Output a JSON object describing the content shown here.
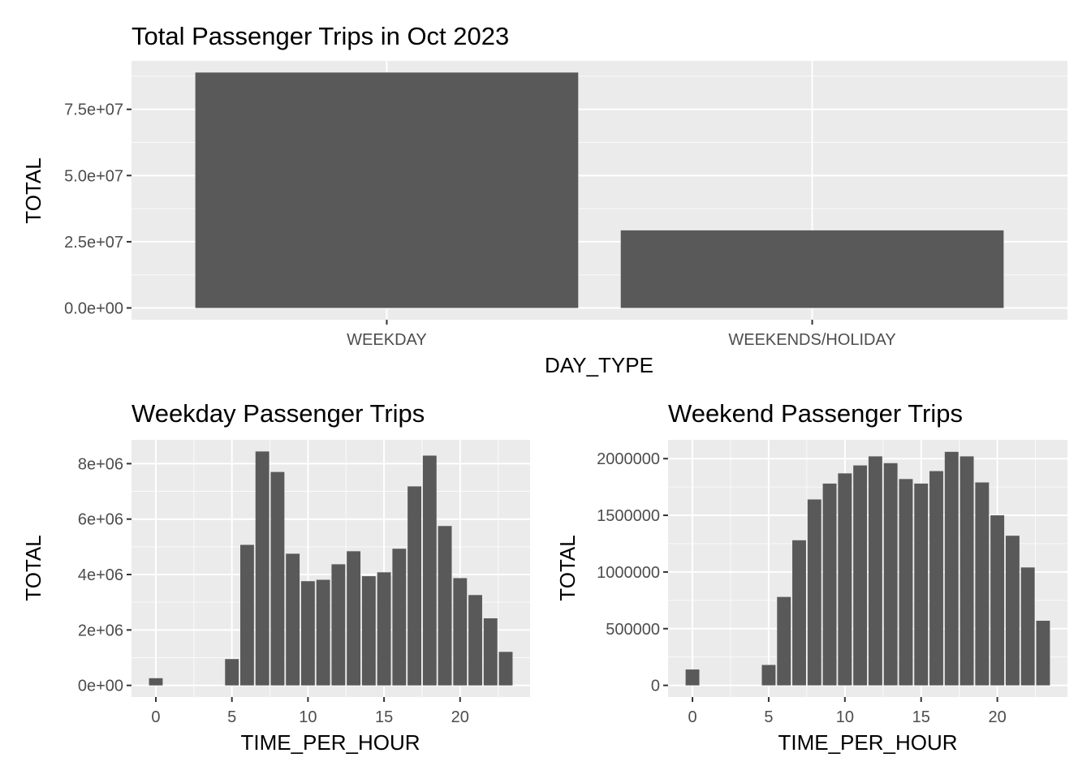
{
  "colors": {
    "panel_background": "#ebebeb",
    "grid": "#ffffff",
    "bar_fill": "#595959",
    "tick_text": "#4d4d4d"
  },
  "chart_data": [
    {
      "id": "total",
      "type": "bar",
      "title": "Total Passenger Trips in Oct 2023",
      "xlabel": "DAY_TYPE",
      "ylabel": "TOTAL",
      "categories": [
        "WEEKDAY",
        "WEEKENDS/HOLIDAY"
      ],
      "values": [
        88900000,
        29300000
      ],
      "ylim": [
        -4440000,
        93300000
      ],
      "yticks": [
        0,
        25000000,
        50000000,
        75000000
      ],
      "ytick_labels": [
        "0.0e+00",
        "2.5e+07",
        "5.0e+07",
        "7.5e+07"
      ],
      "grid": true,
      "legend": "none"
    },
    {
      "id": "weekday",
      "type": "bar",
      "title": "Weekday Passenger Trips",
      "xlabel": "TIME_PER_HOUR",
      "ylabel": "TOTAL",
      "x": [
        0,
        5,
        6,
        7,
        8,
        9,
        10,
        11,
        12,
        13,
        14,
        15,
        16,
        17,
        18,
        19,
        20,
        21,
        22,
        23
      ],
      "values": [
        260000,
        950000,
        5070000,
        8440000,
        7700000,
        4750000,
        3760000,
        3810000,
        4370000,
        4840000,
        3940000,
        4080000,
        4930000,
        7180000,
        8290000,
        5750000,
        3870000,
        3260000,
        2420000,
        1210000
      ],
      "xlim": [
        -1.6,
        24.6
      ],
      "ylim": [
        -420000,
        8860000
      ],
      "xticks": [
        0,
        5,
        10,
        15,
        20
      ],
      "yticks": [
        0,
        2000000,
        4000000,
        6000000,
        8000000
      ],
      "ytick_labels": [
        "0e+00",
        "2e+06",
        "4e+06",
        "6e+06",
        "8e+06"
      ],
      "grid": true,
      "legend": "none"
    },
    {
      "id": "weekend",
      "type": "bar",
      "title": "Weekend Passenger Trips",
      "xlabel": "TIME_PER_HOUR",
      "ylabel": "TOTAL",
      "x": [
        0,
        5,
        6,
        7,
        8,
        9,
        10,
        11,
        12,
        13,
        14,
        15,
        16,
        17,
        18,
        19,
        20,
        21,
        22,
        23
      ],
      "values": [
        140000,
        180000,
        780000,
        1280000,
        1640000,
        1780000,
        1870000,
        1940000,
        2020000,
        1960000,
        1820000,
        1780000,
        1890000,
        2060000,
        2020000,
        1790000,
        1500000,
        1320000,
        1040000,
        570000
      ],
      "xlim": [
        -1.6,
        24.6
      ],
      "ylim": [
        -103000,
        2166000
      ],
      "xticks": [
        0,
        5,
        10,
        15,
        20
      ],
      "yticks": [
        0,
        500000,
        1000000,
        1500000,
        2000000
      ],
      "ytick_labels": [
        "0",
        "500000",
        "1000000",
        "1500000",
        "2000000"
      ],
      "grid": true,
      "legend": "none"
    }
  ]
}
